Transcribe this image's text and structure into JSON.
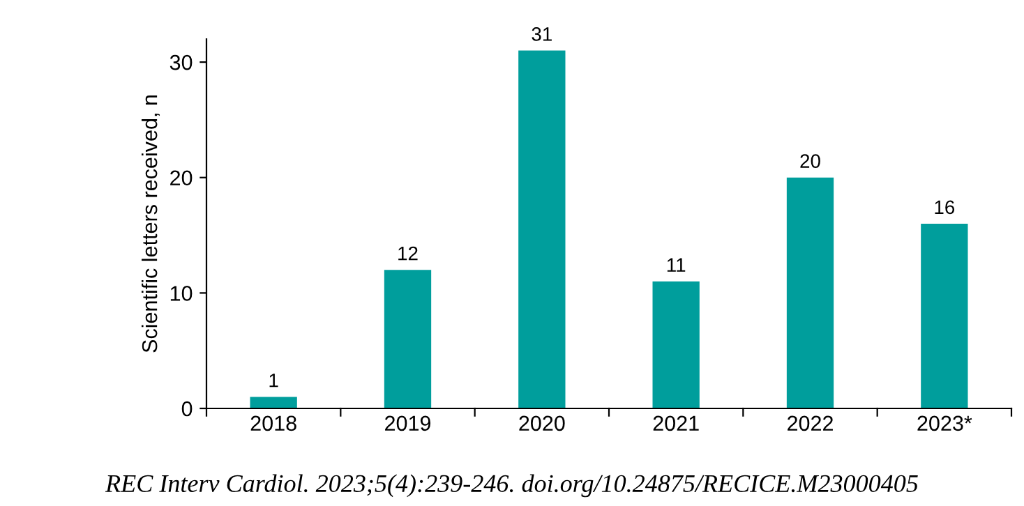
{
  "chart_data": {
    "type": "bar",
    "categories": [
      "2018",
      "2019",
      "2020",
      "2021",
      "2022",
      "2023*"
    ],
    "values": [
      1,
      12,
      31,
      11,
      20,
      16
    ],
    "data_labels": true,
    "color": "#009e9c",
    "ylabel": "Scientific letters received, n",
    "ylim": [
      0,
      32
    ],
    "yticks": [
      0,
      10,
      20,
      30
    ],
    "grid": false,
    "legend": false,
    "annotations": [
      "REC Interv Cardiol. 2023;5(4):239-246. doi.org/10.24875/RECICE.M23000405"
    ]
  }
}
